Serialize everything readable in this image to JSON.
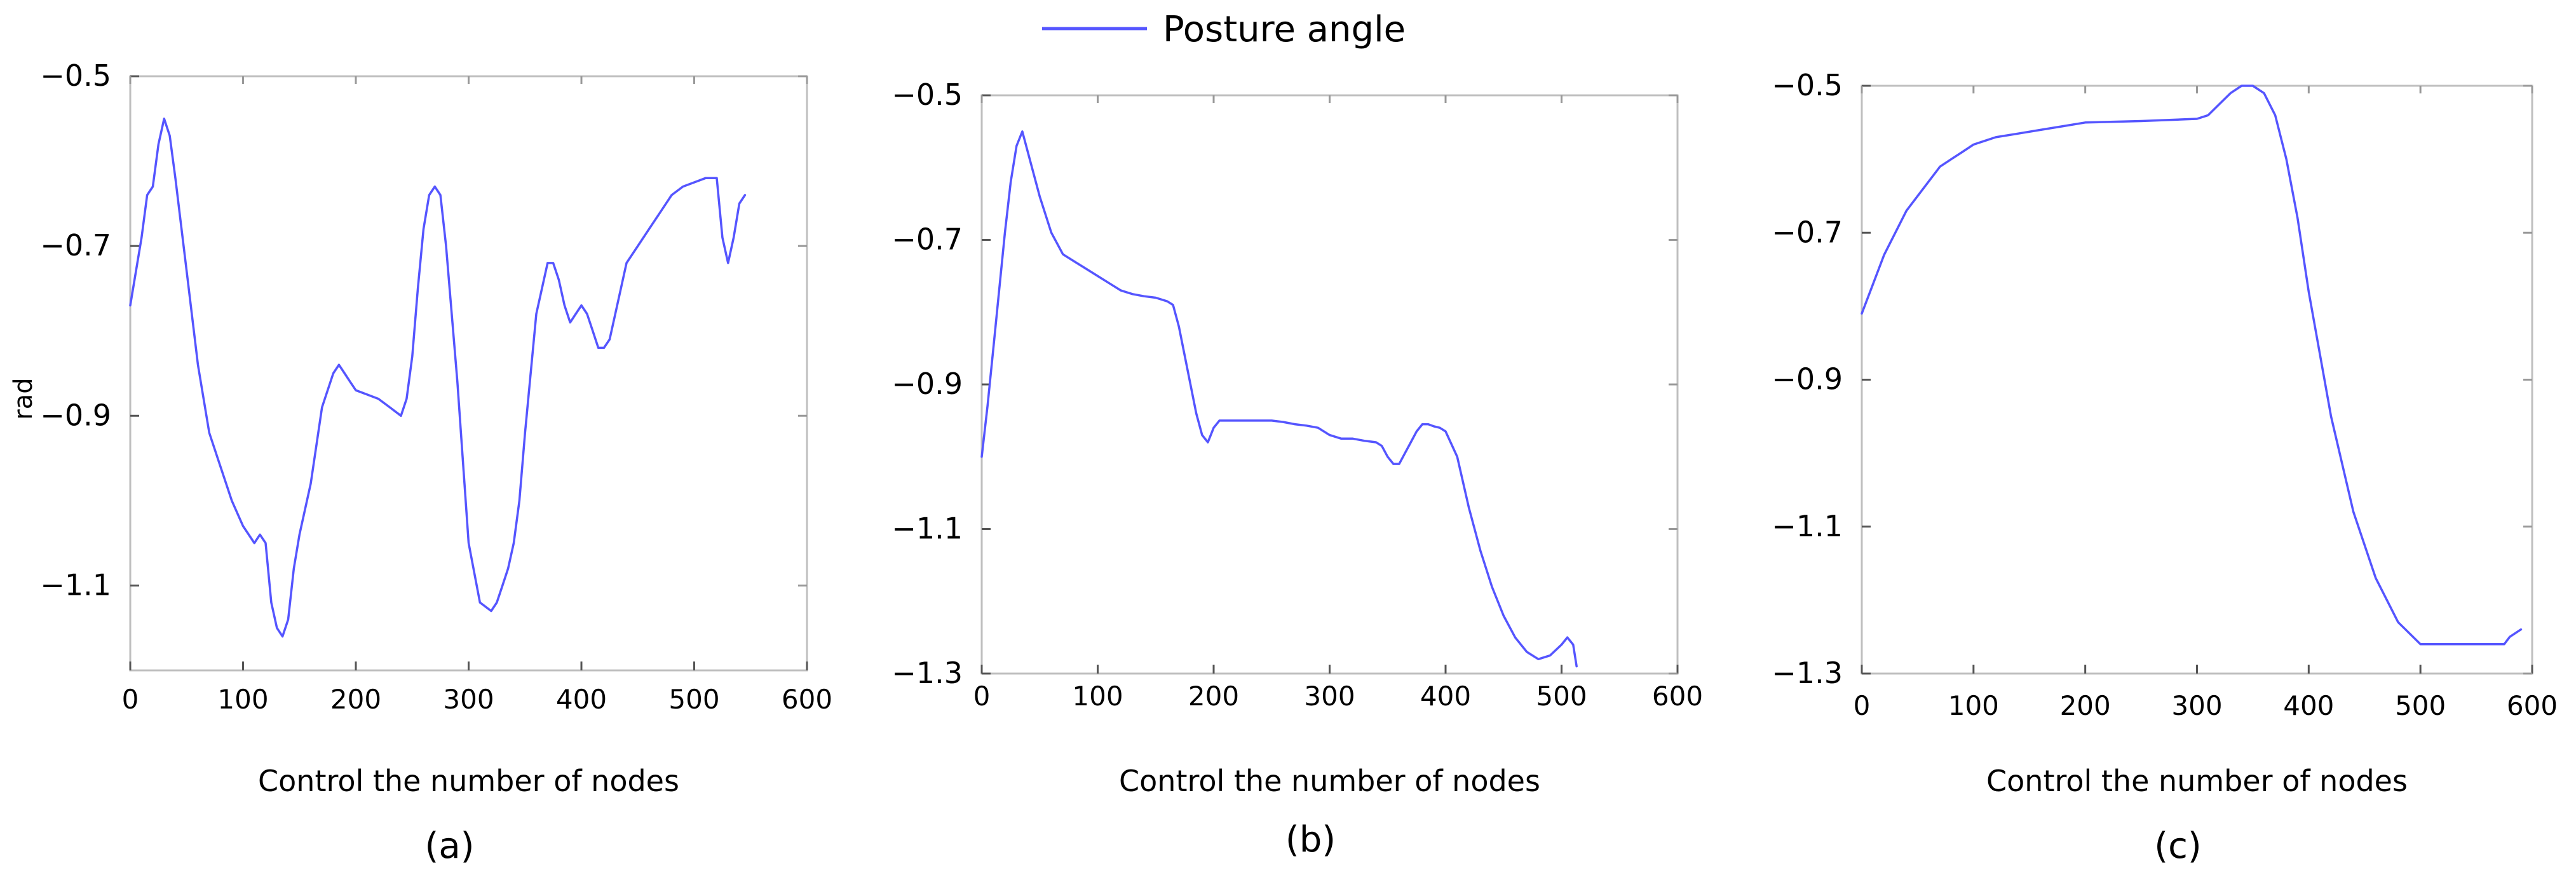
{
  "legend": {
    "label": "Posture angle",
    "color": "#5555ff",
    "position": "top-center"
  },
  "chart_data": [
    {
      "type": "line",
      "panel_label": "(a)",
      "xlabel": "Control the number of nodes",
      "ylabel": "rad",
      "xlim": [
        0,
        600
      ],
      "ylim": [
        -1.2,
        -0.5
      ],
      "xticks": [
        0,
        100,
        200,
        300,
        400,
        500,
        600
      ],
      "yticks": [
        -0.5,
        -0.7,
        -0.9,
        -1.1
      ],
      "ytick_labels": [
        "−0.5",
        "−0.7",
        "−0.9",
        "−1.1"
      ],
      "grid": false,
      "series": [
        {
          "name": "Posture angle",
          "color": "#5555ff",
          "x": [
            0,
            10,
            15,
            20,
            25,
            30,
            35,
            40,
            50,
            60,
            70,
            80,
            90,
            100,
            110,
            115,
            120,
            125,
            130,
            135,
            140,
            145,
            150,
            160,
            170,
            180,
            185,
            190,
            195,
            200,
            210,
            220,
            230,
            240,
            245,
            250,
            255,
            260,
            265,
            270,
            275,
            280,
            285,
            290,
            300,
            310,
            320,
            325,
            330,
            335,
            340,
            345,
            350,
            360,
            370,
            375,
            380,
            385,
            390,
            395,
            400,
            405,
            410,
            415,
            420,
            425,
            430,
            440,
            450,
            460,
            470,
            480,
            490,
            500,
            510,
            520,
            525,
            530,
            535,
            540,
            545
          ],
          "y": [
            -0.77,
            -0.69,
            -0.64,
            -0.63,
            -0.58,
            -0.55,
            -0.57,
            -0.62,
            -0.73,
            -0.84,
            -0.92,
            -0.96,
            -1.0,
            -1.03,
            -1.05,
            -1.04,
            -1.05,
            -1.12,
            -1.15,
            -1.16,
            -1.14,
            -1.08,
            -1.04,
            -0.98,
            -0.89,
            -0.85,
            -0.84,
            -0.85,
            -0.86,
            -0.87,
            -0.875,
            -0.88,
            -0.89,
            -0.9,
            -0.88,
            -0.83,
            -0.75,
            -0.68,
            -0.64,
            -0.63,
            -0.64,
            -0.7,
            -0.78,
            -0.86,
            -1.05,
            -1.12,
            -1.13,
            -1.12,
            -1.1,
            -1.08,
            -1.05,
            -1.0,
            -0.92,
            -0.78,
            -0.72,
            -0.72,
            -0.74,
            -0.77,
            -0.79,
            -0.78,
            -0.77,
            -0.78,
            -0.8,
            -0.82,
            -0.82,
            -0.81,
            -0.78,
            -0.72,
            -0.7,
            -0.68,
            -0.66,
            -0.64,
            -0.63,
            -0.625,
            -0.62,
            -0.62,
            -0.69,
            -0.72,
            -0.69,
            -0.65,
            -0.64
          ]
        }
      ]
    },
    {
      "type": "line",
      "panel_label": "(b)",
      "xlabel": "Control the number of nodes",
      "xlim": [
        0,
        600
      ],
      "ylim": [
        -1.3,
        -0.5
      ],
      "xticks": [
        0,
        100,
        200,
        300,
        400,
        500,
        600
      ],
      "yticks": [
        -0.5,
        -0.7,
        -0.9,
        -1.1,
        -1.3
      ],
      "ytick_labels": [
        "−0.5",
        "−0.7",
        "−0.9",
        "−1.1",
        "−1.3"
      ],
      "grid": false,
      "series": [
        {
          "name": "Posture angle",
          "color": "#5555ff",
          "x": [
            0,
            5,
            10,
            15,
            20,
            25,
            30,
            35,
            40,
            50,
            60,
            70,
            80,
            90,
            100,
            110,
            120,
            130,
            140,
            150,
            160,
            165,
            170,
            175,
            180,
            185,
            190,
            195,
            200,
            205,
            210,
            220,
            230,
            240,
            250,
            260,
            270,
            280,
            290,
            300,
            310,
            320,
            330,
            340,
            345,
            350,
            355,
            360,
            365,
            370,
            375,
            380,
            385,
            390,
            395,
            400,
            410,
            420,
            430,
            440,
            450,
            460,
            470,
            480,
            490,
            500,
            505,
            510,
            513
          ],
          "y": [
            -1.0,
            -0.93,
            -0.85,
            -0.77,
            -0.69,
            -0.62,
            -0.57,
            -0.55,
            -0.58,
            -0.64,
            -0.69,
            -0.72,
            -0.73,
            -0.74,
            -0.75,
            -0.76,
            -0.77,
            -0.775,
            -0.778,
            -0.78,
            -0.785,
            -0.79,
            -0.82,
            -0.86,
            -0.9,
            -0.94,
            -0.97,
            -0.98,
            -0.96,
            -0.95,
            -0.95,
            -0.95,
            -0.95,
            -0.95,
            -0.95,
            -0.952,
            -0.955,
            -0.957,
            -0.96,
            -0.97,
            -0.975,
            -0.975,
            -0.978,
            -0.98,
            -0.985,
            -1.0,
            -1.01,
            -1.01,
            -0.995,
            -0.98,
            -0.965,
            -0.955,
            -0.955,
            -0.958,
            -0.96,
            -0.965,
            -1.0,
            -1.07,
            -1.13,
            -1.18,
            -1.22,
            -1.25,
            -1.27,
            -1.28,
            -1.275,
            -1.26,
            -1.25,
            -1.26,
            -1.29
          ]
        }
      ]
    },
    {
      "type": "line",
      "panel_label": "(c)",
      "xlabel": "Control the number of nodes",
      "xlim": [
        0,
        600
      ],
      "ylim": [
        -1.3,
        -0.5
      ],
      "xticks": [
        0,
        100,
        200,
        300,
        400,
        500,
        600
      ],
      "yticks": [
        -0.5,
        -0.7,
        -0.9,
        -1.1,
        -1.3
      ],
      "ytick_labels": [
        "−0.5",
        "−0.7",
        "−0.9",
        "−1.1",
        "−1.3"
      ],
      "grid": false,
      "series": [
        {
          "name": "Posture angle",
          "color": "#5555ff",
          "x": [
            0,
            10,
            20,
            30,
            40,
            50,
            60,
            70,
            80,
            90,
            100,
            110,
            120,
            140,
            160,
            180,
            200,
            250,
            300,
            310,
            320,
            330,
            340,
            350,
            360,
            370,
            380,
            390,
            400,
            420,
            440,
            460,
            480,
            500,
            520,
            540,
            560,
            575,
            580,
            590
          ],
          "y": [
            -0.81,
            -0.77,
            -0.73,
            -0.7,
            -0.67,
            -0.65,
            -0.63,
            -0.61,
            -0.6,
            -0.59,
            -0.58,
            -0.575,
            -0.57,
            -0.565,
            -0.56,
            -0.555,
            -0.55,
            -0.548,
            -0.545,
            -0.54,
            -0.525,
            -0.51,
            -0.5,
            -0.5,
            -0.51,
            -0.54,
            -0.6,
            -0.68,
            -0.78,
            -0.95,
            -1.08,
            -1.17,
            -1.23,
            -1.26,
            -1.26,
            -1.26,
            -1.26,
            -1.26,
            -1.25,
            -1.24
          ]
        }
      ]
    }
  ]
}
